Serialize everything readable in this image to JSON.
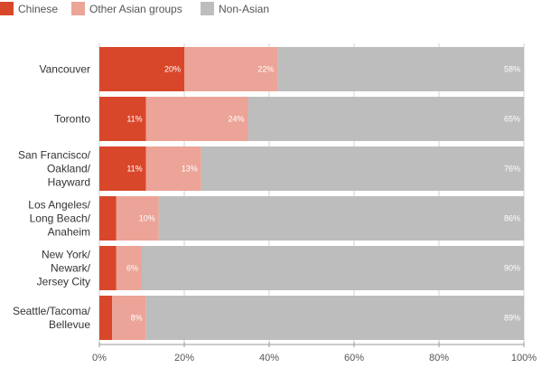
{
  "chart_data": {
    "type": "bar",
    "orientation": "horizontal",
    "stacked": true,
    "legend_position": "top-left",
    "xlim": [
      0,
      100
    ],
    "x_ticks": [
      "0%",
      "20%",
      "40%",
      "60%",
      "80%",
      "100%"
    ],
    "categories": [
      [
        "Vancouver"
      ],
      [
        "Toronto"
      ],
      [
        "San Francisco/",
        "Oakland/",
        "Hayward"
      ],
      [
        "Los Angeles/",
        "Long Beach/",
        "Anaheim"
      ],
      [
        "New York/",
        "Newark/",
        "Jersey City"
      ],
      [
        "Seattle/Tacoma/",
        "Bellevue"
      ]
    ],
    "series": [
      {
        "name": "Chinese",
        "color": "#d9472b",
        "values": [
          20,
          11,
          11,
          4,
          4,
          3
        ],
        "labels": [
          "20%",
          "11%",
          "11%",
          "",
          "",
          ""
        ]
      },
      {
        "name": "Other Asian groups",
        "color": "#eba497",
        "values": [
          22,
          24,
          13,
          10,
          6,
          8
        ],
        "labels": [
          "22%",
          "24%",
          "13%",
          "10%",
          "6%",
          "8%"
        ]
      },
      {
        "name": "Non-Asian",
        "color": "#bdbdbd",
        "values": [
          58,
          65,
          76,
          86,
          90,
          89
        ],
        "labels": [
          "58%",
          "65%",
          "76%",
          "86%",
          "90%",
          "89%"
        ]
      }
    ]
  }
}
